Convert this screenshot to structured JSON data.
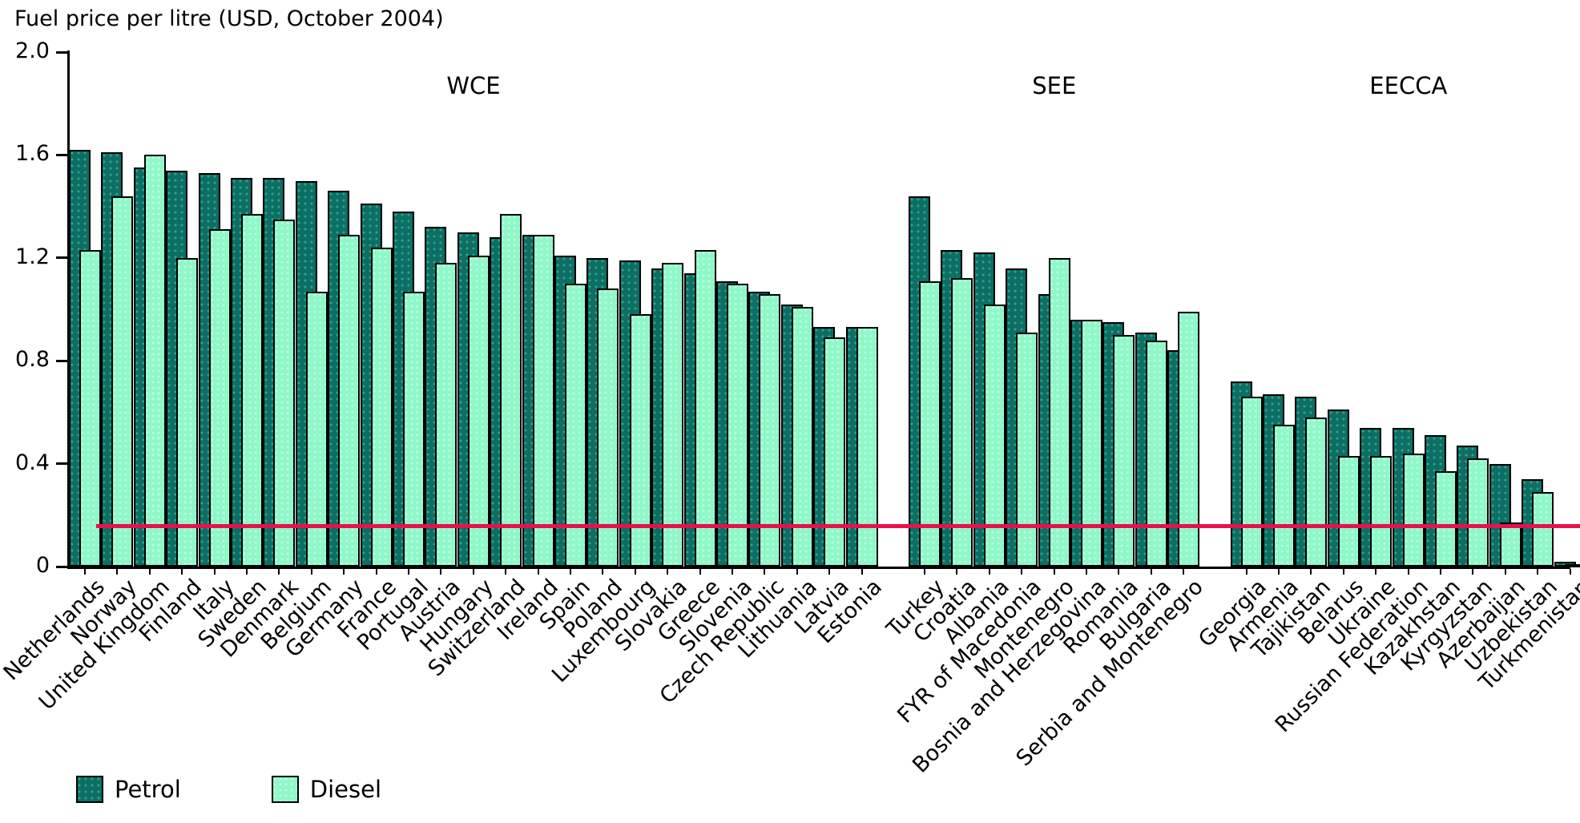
{
  "title": "Fuel price per litre (USD, October 2004)",
  "legend": {
    "petrol_label": "Petrol",
    "diesel_label": "Diesel"
  },
  "colors": {
    "petrol_bar": "#0c6e64",
    "petrol_dots": "#2fa28c",
    "diesel_bar": "#90f8c8",
    "diesel_dots": "#b9ffe0",
    "reference_line": "#e8114b",
    "axis": "#000000",
    "background": "#ffffff"
  },
  "y_axis": {
    "ticks": [
      "0",
      "0.4",
      "0.8",
      "1.2",
      "1.6",
      "2.0"
    ],
    "values": [
      0,
      0.4,
      0.8,
      1.2,
      1.6,
      2.0
    ]
  },
  "chart_data": {
    "type": "bar",
    "title": "Fuel price per litre (USD, October 2004)",
    "series_names": [
      "Petrol",
      "Diesel"
    ],
    "ylim": [
      0,
      2.0
    ],
    "grid": false,
    "legend_position": "bottom-left",
    "reference_line_value": 0.16,
    "groups": [
      {
        "label": "WCE",
        "countries": [
          {
            "name": "Netherlands",
            "petrol": 1.62,
            "diesel": 1.23
          },
          {
            "name": "Norway",
            "petrol": 1.61,
            "diesel": 1.44
          },
          {
            "name": "United Kingdom",
            "petrol": 1.55,
            "diesel": 1.6
          },
          {
            "name": "Finland",
            "petrol": 1.54,
            "diesel": 1.2
          },
          {
            "name": "Italy",
            "petrol": 1.53,
            "diesel": 1.31
          },
          {
            "name": "Sweden",
            "petrol": 1.51,
            "diesel": 1.37
          },
          {
            "name": "Denmark",
            "petrol": 1.51,
            "diesel": 1.35
          },
          {
            "name": "Belgium",
            "petrol": 1.5,
            "diesel": 1.07
          },
          {
            "name": "Germany",
            "petrol": 1.46,
            "diesel": 1.29
          },
          {
            "name": "France",
            "petrol": 1.41,
            "diesel": 1.24
          },
          {
            "name": "Portugal",
            "petrol": 1.38,
            "diesel": 1.07
          },
          {
            "name": "Austria",
            "petrol": 1.32,
            "diesel": 1.18
          },
          {
            "name": "Hungary",
            "petrol": 1.3,
            "diesel": 1.21
          },
          {
            "name": "Switzerland",
            "petrol": 1.28,
            "diesel": 1.37
          },
          {
            "name": "Ireland",
            "petrol": 1.29,
            "diesel": 1.29
          },
          {
            "name": "Spain",
            "petrol": 1.21,
            "diesel": 1.1
          },
          {
            "name": "Poland",
            "petrol": 1.2,
            "diesel": 1.08
          },
          {
            "name": "Luxembourg",
            "petrol": 1.19,
            "diesel": 0.98
          },
          {
            "name": "Slovakia",
            "petrol": 1.16,
            "diesel": 1.18
          },
          {
            "name": "Greece",
            "petrol": 1.14,
            "diesel": 1.23
          },
          {
            "name": "Slovenia",
            "petrol": 1.11,
            "diesel": 1.1
          },
          {
            "name": "Czech Republic",
            "petrol": 1.07,
            "diesel": 1.06
          },
          {
            "name": "Lithuania",
            "petrol": 1.02,
            "diesel": 1.01
          },
          {
            "name": "Latvia",
            "petrol": 0.93,
            "diesel": 0.89
          },
          {
            "name": "Estonia",
            "petrol": 0.93,
            "diesel": 0.93
          }
        ]
      },
      {
        "label": "SEE",
        "countries": [
          {
            "name": "Turkey",
            "petrol": 1.44,
            "diesel": 1.11
          },
          {
            "name": "Croatia",
            "petrol": 1.23,
            "diesel": 1.12
          },
          {
            "name": "Albania",
            "petrol": 1.22,
            "diesel": 1.02
          },
          {
            "name": "FYR of Macedonia",
            "petrol": 1.16,
            "diesel": 0.91
          },
          {
            "name": "Montenegro",
            "petrol": 1.06,
            "diesel": 1.2
          },
          {
            "name": "Bosnia and Herzegovina",
            "petrol": 0.96,
            "diesel": 0.96
          },
          {
            "name": "Romania",
            "petrol": 0.95,
            "diesel": 0.9
          },
          {
            "name": "Bulgaria",
            "petrol": 0.91,
            "diesel": 0.88
          },
          {
            "name": "Serbia and Montenegro",
            "petrol": 0.84,
            "diesel": 0.99
          }
        ]
      },
      {
        "label": "EECCA",
        "countries": [
          {
            "name": "Georgia",
            "petrol": 0.72,
            "diesel": 0.66
          },
          {
            "name": "Armenia",
            "petrol": 0.67,
            "diesel": 0.55
          },
          {
            "name": "Tajikistan",
            "petrol": 0.66,
            "diesel": 0.58
          },
          {
            "name": "Belarus",
            "petrol": 0.61,
            "diesel": 0.43
          },
          {
            "name": "Ukraine",
            "petrol": 0.54,
            "diesel": 0.43
          },
          {
            "name": "Russian Federation",
            "petrol": 0.54,
            "diesel": 0.44
          },
          {
            "name": "Kazakhstan",
            "petrol": 0.51,
            "diesel": 0.37
          },
          {
            "name": "Kyrgyzstan",
            "petrol": 0.47,
            "diesel": 0.42
          },
          {
            "name": "Azerbaijan",
            "petrol": 0.4,
            "diesel": 0.17
          },
          {
            "name": "Uzbekistan",
            "petrol": 0.34,
            "diesel": 0.29
          },
          {
            "name": "Turkmenistan",
            "petrol": 0.02,
            "diesel": 0.01
          }
        ]
      }
    ]
  }
}
